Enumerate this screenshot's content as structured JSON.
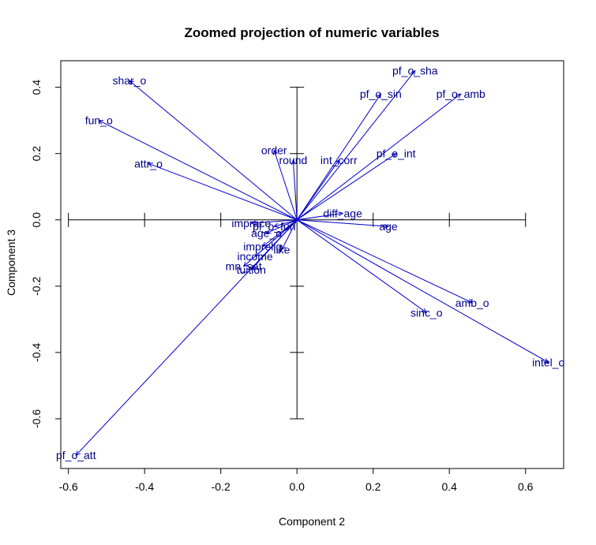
{
  "chart_data": {
    "type": "scatter",
    "title": "Zoomed projection of numeric variables",
    "xlabel": "Component 2",
    "ylabel": "Component 3",
    "xlim": [
      -0.62,
      0.7
    ],
    "ylim": [
      -0.75,
      0.48
    ],
    "x_ticks": [
      -0.6,
      -0.4,
      -0.2,
      0.0,
      0.2,
      0.4,
      0.6
    ],
    "y_ticks": [
      -0.6,
      -0.4,
      -0.2,
      0.0,
      0.2,
      0.4
    ],
    "x_tick_labels": [
      "-0.6",
      "-0.4",
      "-0.2",
      "0.0",
      "0.2",
      "0.4",
      "0.6"
    ],
    "y_tick_labels": [
      "-0.6",
      "-0.4",
      "-0.2",
      "0.0",
      "0.2",
      "0.4"
    ],
    "arrow_color": "#0000CD",
    "label_color": "#00008B",
    "cross": {
      "x_range": [
        -0.6,
        0.6
      ],
      "x_ticks": [
        -0.6,
        -0.4,
        -0.2,
        0.2,
        0.4,
        0.6
      ],
      "y_range": [
        -0.6,
        0.4
      ],
      "y_ticks": [
        -0.6,
        -0.4,
        -0.2,
        0.2,
        0.4
      ]
    },
    "variables": [
      {
        "name": "shar_o",
        "x": -0.44,
        "y": 0.42
      },
      {
        "name": "fun_o",
        "x": -0.52,
        "y": 0.3
      },
      {
        "name": "attr_o",
        "x": -0.39,
        "y": 0.17
      },
      {
        "name": "order",
        "x": -0.06,
        "y": 0.21
      },
      {
        "name": "round",
        "x": -0.01,
        "y": 0.18
      },
      {
        "name": "int_corr",
        "x": 0.11,
        "y": 0.18
      },
      {
        "name": "pf_o_sha",
        "x": 0.31,
        "y": 0.45
      },
      {
        "name": "pf_o_sin",
        "x": 0.22,
        "y": 0.38
      },
      {
        "name": "pf_o_amb",
        "x": 0.43,
        "y": 0.38
      },
      {
        "name": "pf_o_int",
        "x": 0.26,
        "y": 0.2
      },
      {
        "name": "diff_age",
        "x": 0.12,
        "y": 0.02
      },
      {
        "name": "age",
        "x": 0.24,
        "y": -0.02
      },
      {
        "name": "imprace",
        "x": -0.12,
        "y": -0.01
      },
      {
        "name": "pf_o_fun",
        "x": -0.06,
        "y": -0.02
      },
      {
        "name": "age_o",
        "x": -0.08,
        "y": -0.04
      },
      {
        "name": "imprelig",
        "x": -0.09,
        "y": -0.08
      },
      {
        "name": "income",
        "x": -0.11,
        "y": -0.11
      },
      {
        "name": "like",
        "x": -0.04,
        "y": -0.09
      },
      {
        "name": "mn_sat",
        "x": -0.14,
        "y": -0.14
      },
      {
        "name": "tuition",
        "x": -0.12,
        "y": -0.15
      },
      {
        "name": "amb_o",
        "x": 0.46,
        "y": -0.25
      },
      {
        "name": "sinc_o",
        "x": 0.34,
        "y": -0.28
      },
      {
        "name": "intel_o",
        "x": 0.66,
        "y": -0.43
      },
      {
        "name": "pf_o_att",
        "x": -0.58,
        "y": -0.71
      }
    ]
  }
}
